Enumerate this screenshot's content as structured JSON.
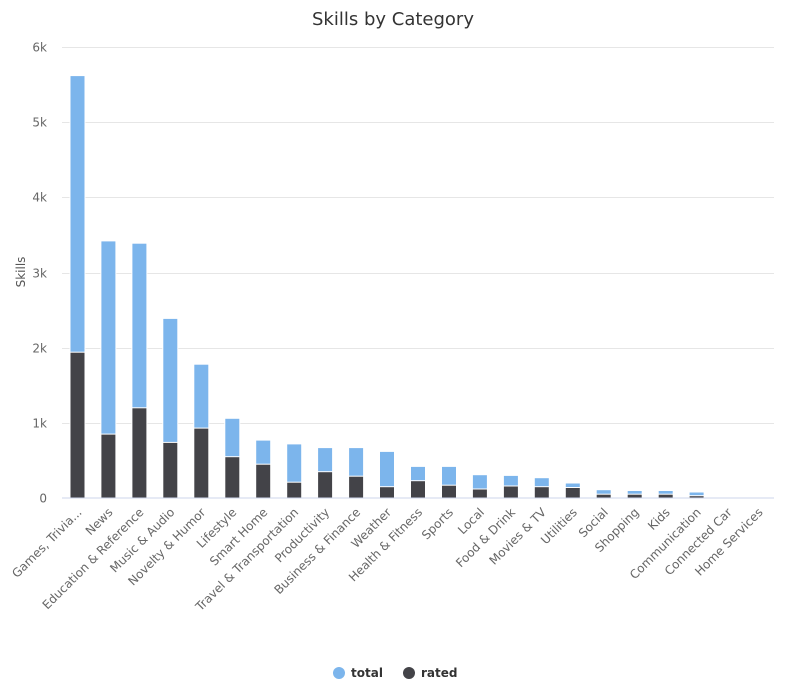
{
  "chart_data": {
    "type": "bar",
    "title": "Skills by Category",
    "xlabel": "",
    "ylabel": "Skills",
    "ylim": [
      0,
      6000
    ],
    "yticks": [
      0,
      1000,
      2000,
      3000,
      4000,
      5000,
      6000
    ],
    "ytick_labels": [
      "0",
      "1k",
      "2k",
      "3k",
      "4k",
      "5k",
      "6k"
    ],
    "grid": true,
    "legend_position": "bottom-center",
    "categories": [
      "Games, Trivia...",
      "News",
      "Education & Reference",
      "Music & Audio",
      "Novelty & Humor",
      "Lifestyle",
      "Smart Home",
      "Travel & Transportation",
      "Productivity",
      "Business & Finance",
      "Weather",
      "Health & Fitness",
      "Sports",
      "Local",
      "Food & Drink",
      "Movies & TV",
      "Utilities",
      "Social",
      "Shopping",
      "Kids",
      "Communication",
      "Connected Car",
      "Home Services"
    ],
    "series": [
      {
        "name": "total",
        "color": "#7cb5ec",
        "values": [
          5620,
          3420,
          3390,
          2390,
          1780,
          1060,
          770,
          720,
          670,
          670,
          620,
          420,
          420,
          310,
          300,
          270,
          200,
          110,
          100,
          100,
          80,
          20,
          5
        ]
      },
      {
        "name": "rated",
        "color": "#434348",
        "values": [
          1940,
          850,
          1200,
          740,
          930,
          550,
          450,
          210,
          350,
          290,
          150,
          230,
          170,
          120,
          160,
          150,
          140,
          50,
          50,
          50,
          30,
          10,
          2
        ]
      }
    ]
  }
}
